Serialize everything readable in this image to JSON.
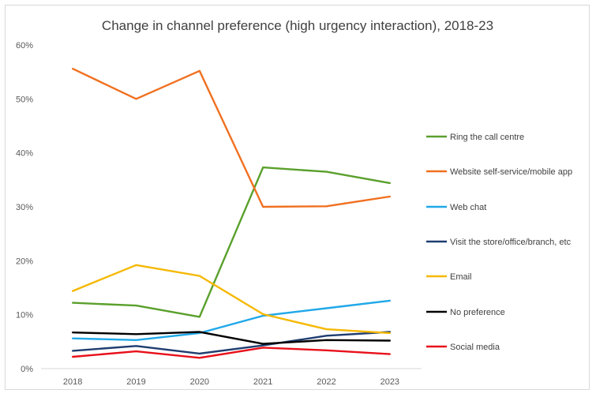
{
  "chart_data": {
    "type": "line",
    "title": "Change in channel preference (high urgency interaction), 2018-23",
    "xlabel": "",
    "ylabel": "",
    "categories": [
      "2018",
      "2019",
      "2020",
      "2021",
      "2022",
      "2023"
    ],
    "ylim": [
      0,
      60
    ],
    "yticks": [
      0,
      10,
      20,
      30,
      40,
      50,
      60
    ],
    "ytick_labels": [
      "0%",
      "10%",
      "20%",
      "30%",
      "40%",
      "50%",
      "60%"
    ],
    "grid": false,
    "legend_position": "right",
    "series": [
      {
        "name": "Ring the call centre",
        "color": "#5aa02c",
        "values": [
          12.2,
          11.7,
          9.6,
          37.3,
          36.5,
          34.4
        ]
      },
      {
        "name": "Website self-service/mobile app",
        "color": "#f07020",
        "values": [
          55.6,
          50.0,
          55.2,
          30.0,
          30.1,
          31.9
        ]
      },
      {
        "name": "Web chat",
        "color": "#20a8e8",
        "values": [
          5.6,
          5.3,
          6.6,
          9.8,
          11.2,
          12.6
        ]
      },
      {
        "name": "Visit the store/office/branch, etc",
        "color": "#1f3d70",
        "values": [
          3.3,
          4.2,
          2.8,
          4.3,
          6.1,
          6.8
        ]
      },
      {
        "name": "Email",
        "color": "#f5b800",
        "values": [
          14.4,
          19.2,
          17.2,
          10.1,
          7.3,
          6.6
        ]
      },
      {
        "name": "No preference",
        "color": "#000000",
        "values": [
          6.7,
          6.4,
          6.8,
          4.6,
          5.3,
          5.2
        ]
      },
      {
        "name": "Social media",
        "color": "#e8101a",
        "values": [
          2.2,
          3.2,
          2.0,
          3.9,
          3.4,
          2.7
        ]
      }
    ]
  }
}
